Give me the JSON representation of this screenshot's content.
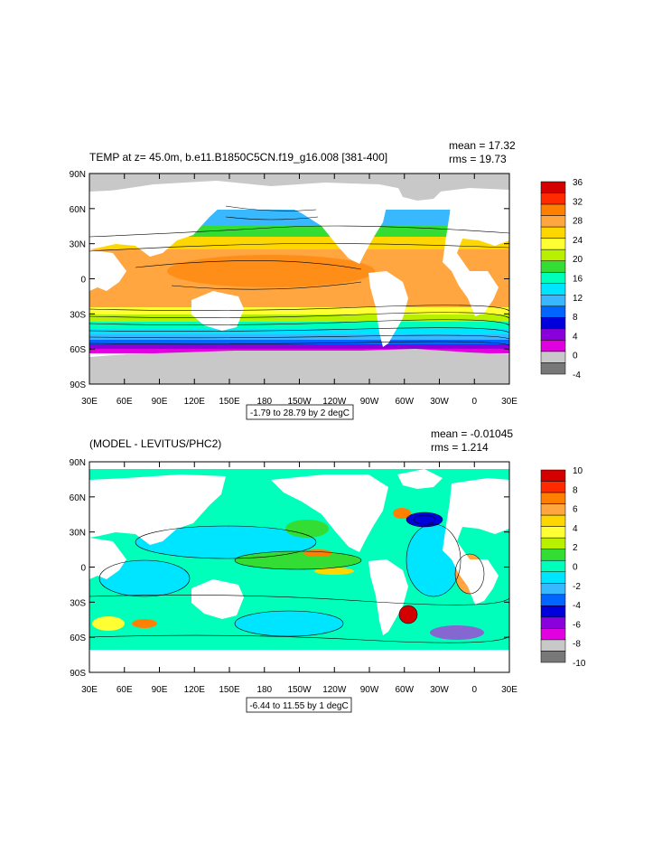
{
  "panels": [
    {
      "title": "TEMP at z=  45.0m, b.e11.B1850C5CN.f19_g16.008 [381-400]",
      "mean": "mean = 17.32",
      "rms": "rms = 19.73",
      "range_label": "-1.79 to 28.79 by 2 degC",
      "lat_labels": [
        "90N",
        "60N",
        "30N",
        "0",
        "30S",
        "60S",
        "90S"
      ],
      "lon_labels": [
        "30E",
        "60E",
        "90E",
        "120E",
        "150E",
        "180",
        "150W",
        "120W",
        "90W",
        "60W",
        "30W",
        "0",
        "30E"
      ],
      "colorbar_labels": [
        "36",
        "32",
        "28",
        "24",
        "20",
        "16",
        "12",
        "8",
        "4",
        "0",
        "-4"
      ],
      "colorbar_colors": [
        "#d40000",
        "#ff2a00",
        "#ff7f00",
        "#ffa640",
        "#ffd700",
        "#ffff33",
        "#b8f000",
        "#33dd33",
        "#00ffbb",
        "#00e5ff",
        "#38b8ff",
        "#0066ff",
        "#0000dd",
        "#8a00dd",
        "#e000e0",
        "#c8c8c8",
        "#787878"
      ]
    },
    {
      "title": "(MODEL - LEVITUS/PHC2)",
      "mean": "mean = -0.01045",
      "rms": "rms = 1.214",
      "range_label": "-6.44 to 11.55 by 1 degC",
      "lat_labels": [
        "90N",
        "60N",
        "30N",
        "0",
        "30S",
        "60S",
        "90S"
      ],
      "lon_labels": [
        "30E",
        "60E",
        "90E",
        "120E",
        "150E",
        "180",
        "150W",
        "120W",
        "90W",
        "60W",
        "30W",
        "0",
        "30E"
      ],
      "colorbar_labels": [
        "10",
        "8",
        "6",
        "4",
        "2",
        "0",
        "-2",
        "-4",
        "-6",
        "-8",
        "-10"
      ],
      "colorbar_colors": [
        "#d40000",
        "#ff2a00",
        "#ff7f00",
        "#ffa640",
        "#ffd700",
        "#ffff33",
        "#b8f000",
        "#33dd33",
        "#00ffbb",
        "#00e5ff",
        "#38b8ff",
        "#0066ff",
        "#0000dd",
        "#8a00dd",
        "#e000e0",
        "#c8c8c8",
        "#787878"
      ]
    }
  ]
}
